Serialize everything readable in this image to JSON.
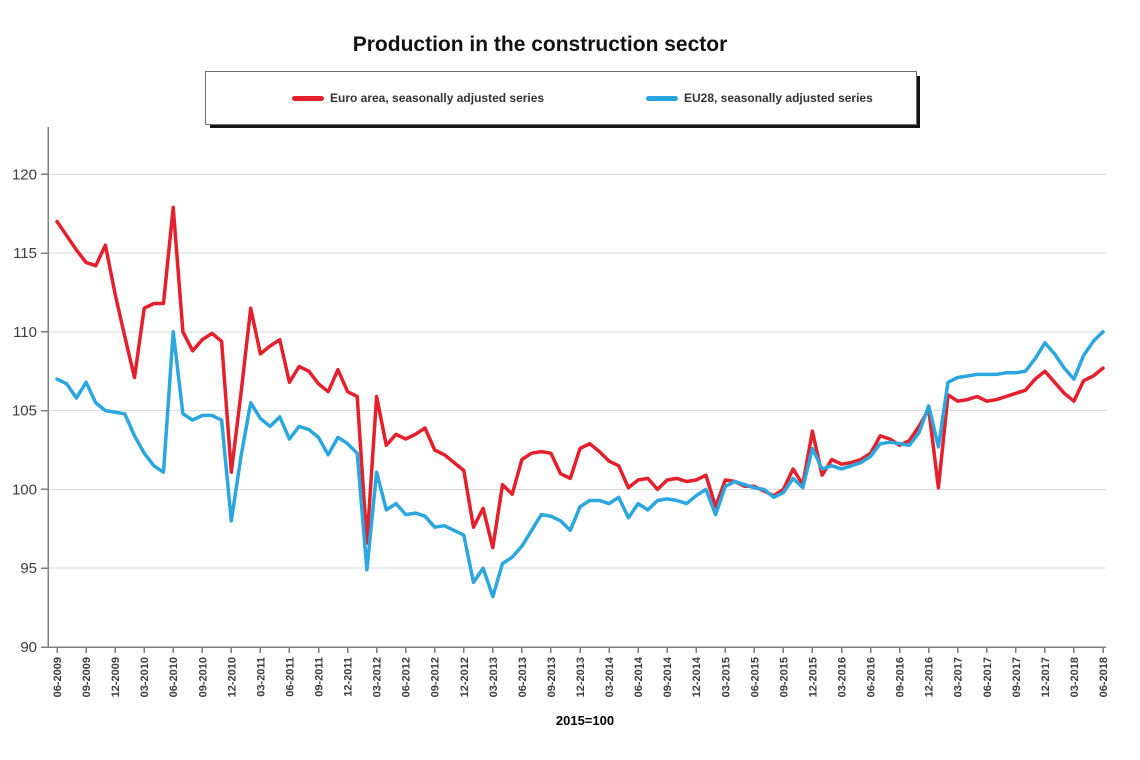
{
  "title": "Production in the construction sector",
  "footnote": "2015=100",
  "legend": {
    "items": [
      {
        "label": "Euro area, seasonally adjusted series",
        "color": "#e4202c"
      },
      {
        "label": "EU28, seasonally adjusted series",
        "color": "#2ca6de"
      }
    ]
  },
  "colors": {
    "grid": "#d9d9d9",
    "axis": "#7f7f7f",
    "tick_label": "#3c3c3c"
  },
  "chart_data": {
    "type": "line",
    "title": "Production in the construction sector",
    "index_note": "2015=100",
    "x_unit": "month",
    "x_start": "06-2009",
    "x_end": "06-2018",
    "x_tick_every_months": 3,
    "x_tick_labels": [
      "06-2009",
      "09-2009",
      "12-2009",
      "03-2010",
      "06-2010",
      "09-2010",
      "12-2010",
      "03-2011",
      "06-2011",
      "09-2011",
      "12-2011",
      "03-2012",
      "06-2012",
      "09-2012",
      "12-2012",
      "03-2013",
      "06-2013",
      "09-2013",
      "12-2013",
      "03-2014",
      "06-2014",
      "09-2014",
      "12-2014",
      "03-2015",
      "06-2015",
      "09-2015",
      "12-2015",
      "03-2016",
      "06-2016",
      "09-2016",
      "12-2016",
      "03-2017",
      "06-2017",
      "09-2017",
      "12-2017",
      "03-2018",
      "06-2018"
    ],
    "yticks": [
      90,
      95,
      100,
      105,
      110,
      115,
      120
    ],
    "ylim": [
      90,
      123
    ],
    "grid": "horizontal",
    "legend_position": "top",
    "series": [
      {
        "name": "Euro area, seasonally adjusted series",
        "color": "#e4202c",
        "values": [
          117.0,
          116.1,
          115.2,
          114.4,
          114.2,
          115.5,
          112.4,
          109.7,
          107.1,
          111.5,
          111.8,
          111.8,
          117.9,
          110.0,
          108.8,
          109.5,
          109.9,
          109.4,
          101.1,
          106.1,
          111.5,
          108.6,
          109.1,
          109.5,
          106.8,
          107.8,
          107.5,
          106.7,
          106.2,
          107.6,
          106.2,
          105.9,
          96.6,
          105.9,
          102.8,
          103.5,
          103.2,
          103.5,
          103.9,
          102.5,
          102.2,
          101.7,
          101.2,
          97.6,
          98.8,
          96.3,
          100.3,
          99.7,
          101.9,
          102.3,
          102.4,
          102.3,
          101.0,
          100.7,
          102.6,
          102.9,
          102.4,
          101.8,
          101.5,
          100.1,
          100.6,
          100.7,
          100.0,
          100.6,
          100.7,
          100.5,
          100.6,
          100.9,
          98.9,
          100.6,
          100.5,
          100.2,
          100.2,
          99.9,
          99.6,
          100.0,
          101.3,
          100.3,
          103.7,
          100.9,
          101.9,
          101.6,
          101.7,
          101.9,
          102.3,
          103.4,
          103.2,
          102.8,
          103.1,
          104.0,
          105.1,
          100.1,
          106.0,
          105.6,
          105.7,
          105.9,
          105.6,
          105.7,
          105.9,
          106.1,
          106.3,
          107.0,
          107.5,
          106.8,
          106.1,
          105.6,
          106.9,
          107.2,
          107.7
        ]
      },
      {
        "name": "EU28, seasonally adjusted series",
        "color": "#2ca6de",
        "values": [
          107.0,
          106.7,
          105.8,
          106.8,
          105.5,
          105.0,
          104.9,
          104.8,
          103.4,
          102.3,
          101.5,
          101.1,
          110.0,
          104.8,
          104.4,
          104.7,
          104.7,
          104.4,
          98.0,
          102.1,
          105.5,
          104.5,
          104.0,
          104.6,
          103.2,
          104.0,
          103.8,
          103.3,
          102.2,
          103.3,
          102.9,
          102.3,
          94.9,
          101.1,
          98.7,
          99.1,
          98.4,
          98.5,
          98.3,
          97.6,
          97.7,
          97.4,
          97.1,
          94.1,
          95.0,
          93.2,
          95.3,
          95.7,
          96.4,
          97.4,
          98.4,
          98.3,
          98.0,
          97.4,
          98.9,
          99.3,
          99.3,
          99.1,
          99.5,
          98.2,
          99.1,
          98.7,
          99.3,
          99.4,
          99.3,
          99.1,
          99.6,
          100.0,
          98.4,
          100.2,
          100.5,
          100.3,
          100.1,
          100.0,
          99.5,
          99.8,
          100.7,
          100.1,
          102.6,
          101.3,
          101.5,
          101.3,
          101.5,
          101.7,
          102.1,
          102.9,
          103.0,
          102.9,
          102.8,
          103.6,
          105.3,
          102.7,
          106.8,
          107.1,
          107.2,
          107.3,
          107.3,
          107.3,
          107.4,
          107.4,
          107.5,
          108.3,
          109.3,
          108.6,
          107.7,
          107.0,
          108.5,
          109.4,
          110.0
        ]
      }
    ]
  }
}
